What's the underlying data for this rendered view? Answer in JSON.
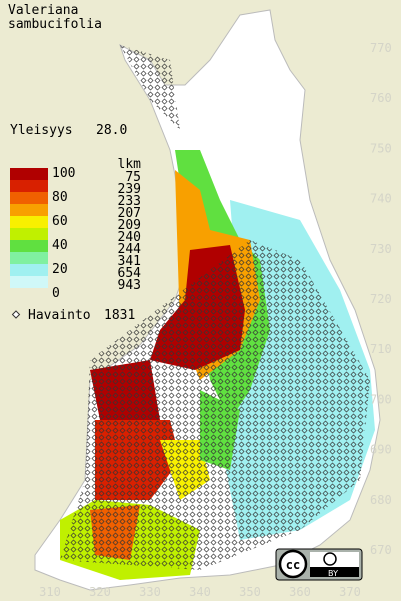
{
  "title": [
    "Valeriana",
    "sambucifolia"
  ],
  "frequency": {
    "label": "Yleisyys",
    "value": "28.0"
  },
  "legend": {
    "scale": [
      "100",
      "80",
      "60",
      "40",
      "20",
      "0"
    ],
    "count_header": "lkm",
    "counts": [
      "75",
      "239",
      "233",
      "207",
      "209",
      "240",
      "244",
      "341",
      "654",
      "943"
    ]
  },
  "observations": {
    "label": "Havainto",
    "value": "1831"
  },
  "axes": {
    "y": [
      "770",
      "760",
      "750",
      "740",
      "730",
      "720",
      "710",
      "700",
      "690",
      "680",
      "670"
    ],
    "x": [
      "310",
      "320",
      "330",
      "340",
      "350",
      "360",
      "370"
    ]
  },
  "license": "BY"
}
